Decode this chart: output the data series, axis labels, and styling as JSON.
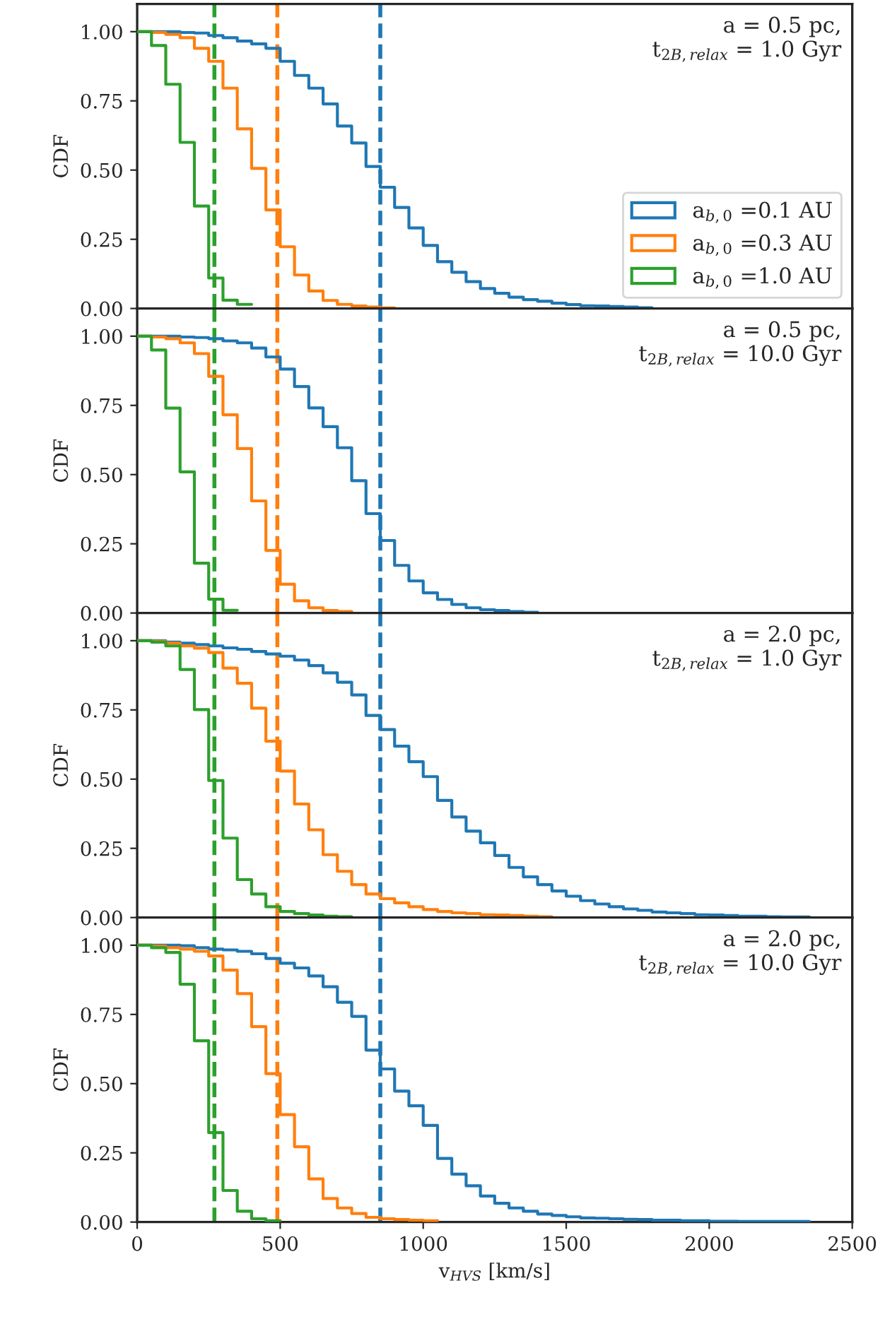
{
  "chart_data": [
    {
      "type": "step",
      "ylabel": "CDF",
      "annotations": [
        "a = 0.5 pc,\nt$_{2B,relax}$ = 1.0 Gyr"
      ],
      "legend": "lower right",
      "tick_labels": "y",
      "xlim": [
        0,
        2500
      ],
      "xticks": [
        0,
        500,
        1000,
        1500,
        2000,
        2500
      ],
      "ylim": [
        0,
        1.1
      ],
      "yticks": [
        {
          "value": 0,
          "label": "0.00"
        },
        {
          "value": 0.25,
          "label": "0.25"
        },
        {
          "value": 0.5,
          "label": "0.50"
        },
        {
          "value": 0.75,
          "label": "0.75"
        },
        {
          "value": 1.0,
          "label": "1.00"
        }
      ],
      "ref_lines": [
        {
          "axis": "x",
          "value": 850,
          "color": "#1f77b4",
          "line_style": "dashed"
        },
        {
          "axis": "x",
          "value": 490,
          "color": "#ff7f0e",
          "line_style": "dashed"
        },
        {
          "axis": "x",
          "value": 270,
          "color": "#2ca02c",
          "line_style": "dashed"
        }
      ],
      "series": [
        {
          "name": "a$_{b,0}$ =0.1 AU",
          "color": "#1f77b4",
          "x": [
            0,
            50,
            100,
            150,
            200,
            250,
            300,
            350,
            400,
            450,
            500,
            550,
            600,
            650,
            700,
            750,
            800,
            850,
            900,
            950,
            1000,
            1050,
            1100,
            1150,
            1200,
            1250,
            1300,
            1350,
            1400,
            1450,
            1500,
            1550,
            1600,
            1650,
            1700,
            1750,
            1800
          ],
          "values": [
            1.0,
            1.0,
            1.0,
            0.997,
            0.995,
            0.986,
            0.978,
            0.966,
            0.956,
            0.94,
            0.893,
            0.842,
            0.796,
            0.739,
            0.659,
            0.598,
            0.513,
            0.438,
            0.365,
            0.291,
            0.228,
            0.169,
            0.131,
            0.097,
            0.072,
            0.055,
            0.041,
            0.032,
            0.026,
            0.019,
            0.014,
            0.01,
            0.009,
            0.007,
            0.005,
            0.003,
            0.003
          ]
        },
        {
          "name": "a$_{b,0}$ =0.3 AU",
          "color": "#ff7f0e",
          "x": [
            0,
            50,
            100,
            150,
            200,
            250,
            300,
            350,
            400,
            450,
            500,
            550,
            600,
            650,
            700,
            750,
            800,
            850,
            900
          ],
          "values": [
            1.0,
            0.997,
            0.99,
            0.978,
            0.94,
            0.893,
            0.796,
            0.649,
            0.506,
            0.356,
            0.223,
            0.121,
            0.063,
            0.029,
            0.015,
            0.009,
            0.005,
            0.002,
            0.002
          ]
        },
        {
          "name": "a$_{b,0}$ =1.0 AU",
          "color": "#2ca02c",
          "x": [
            0,
            50,
            100,
            150,
            200,
            250,
            300,
            350,
            400
          ],
          "values": [
            1.0,
            0.95,
            0.81,
            0.6,
            0.37,
            0.11,
            0.03,
            0.015,
            0.015
          ]
        }
      ]
    },
    {
      "type": "step",
      "ylabel": "CDF",
      "annotations": [
        "a = 0.5 pc,\nt$_{2B,relax}$ = 10.0 Gyr"
      ],
      "tick_labels": "y",
      "xlim": [
        0,
        2500
      ],
      "xticks": [
        0,
        500,
        1000,
        1500,
        2000,
        2500
      ],
      "ylim": [
        0,
        1.1
      ],
      "yticks": [
        {
          "value": 0,
          "label": "0.00"
        },
        {
          "value": 0.25,
          "label": "0.25"
        },
        {
          "value": 0.5,
          "label": "0.50"
        },
        {
          "value": 0.75,
          "label": "0.75"
        },
        {
          "value": 1.0,
          "label": "1.00"
        }
      ],
      "ref_lines": [
        {
          "axis": "x",
          "value": 850,
          "color": "#1f77b4",
          "line_style": "dashed"
        },
        {
          "axis": "x",
          "value": 490,
          "color": "#ff7f0e",
          "line_style": "dashed"
        },
        {
          "axis": "x",
          "value": 270,
          "color": "#2ca02c",
          "line_style": "dashed"
        }
      ],
      "series": [
        {
          "color": "#1f77b4",
          "x": [
            0,
            50,
            100,
            150,
            200,
            250,
            300,
            350,
            400,
            450,
            500,
            550,
            600,
            650,
            700,
            750,
            800,
            850,
            900,
            950,
            1000,
            1050,
            1100,
            1150,
            1200,
            1250,
            1300,
            1350,
            1400
          ],
          "values": [
            1.0,
            1.0,
            1.0,
            0.997,
            0.995,
            0.991,
            0.983,
            0.976,
            0.957,
            0.925,
            0.881,
            0.818,
            0.741,
            0.673,
            0.597,
            0.478,
            0.359,
            0.262,
            0.172,
            0.116,
            0.073,
            0.049,
            0.031,
            0.019,
            0.012,
            0.009,
            0.005,
            0.003,
            0.003
          ]
        },
        {
          "color": "#ff7f0e",
          "x": [
            0,
            50,
            100,
            150,
            200,
            250,
            300,
            350,
            400,
            450,
            500,
            550,
            600,
            650,
            700,
            750
          ],
          "values": [
            1.0,
            0.997,
            0.991,
            0.976,
            0.937,
            0.855,
            0.716,
            0.594,
            0.405,
            0.226,
            0.104,
            0.044,
            0.019,
            0.009,
            0.005,
            0.005
          ]
        },
        {
          "color": "#2ca02c",
          "x": [
            0,
            50,
            100,
            150,
            200,
            250,
            300,
            350
          ],
          "values": [
            1.0,
            0.95,
            0.74,
            0.51,
            0.18,
            0.05,
            0.01,
            0.01
          ]
        }
      ]
    },
    {
      "type": "step",
      "ylabel": "CDF",
      "annotations": [
        "a = 2.0 pc,\nt$_{2B,relax}$ = 1.0 Gyr"
      ],
      "tick_labels": "y",
      "xlim": [
        0,
        2500
      ],
      "xticks": [
        0,
        500,
        1000,
        1500,
        2000,
        2500
      ],
      "ylim": [
        0,
        1.1
      ],
      "yticks": [
        {
          "value": 0,
          "label": "0.00"
        },
        {
          "value": 0.25,
          "label": "0.25"
        },
        {
          "value": 0.5,
          "label": "0.50"
        },
        {
          "value": 0.75,
          "label": "0.75"
        },
        {
          "value": 1.0,
          "label": "1.00"
        }
      ],
      "ref_lines": [
        {
          "axis": "x",
          "value": 850,
          "color": "#1f77b4",
          "line_style": "dashed"
        },
        {
          "axis": "x",
          "value": 490,
          "color": "#ff7f0e",
          "line_style": "dashed"
        },
        {
          "axis": "x",
          "value": 270,
          "color": "#2ca02c",
          "line_style": "dashed"
        }
      ],
      "series": [
        {
          "color": "#1f77b4",
          "x": [
            0,
            50,
            100,
            150,
            200,
            250,
            300,
            350,
            400,
            450,
            500,
            550,
            600,
            650,
            700,
            750,
            800,
            850,
            900,
            950,
            1000,
            1050,
            1100,
            1150,
            1200,
            1250,
            1300,
            1350,
            1400,
            1450,
            1500,
            1550,
            1600,
            1650,
            1700,
            1750,
            1800,
            1850,
            1900,
            1950,
            2000,
            2050,
            2100,
            2150,
            2200,
            2250,
            2300,
            2350
          ],
          "values": [
            1.0,
            1.0,
            0.995,
            0.991,
            0.986,
            0.981,
            0.974,
            0.969,
            0.961,
            0.952,
            0.944,
            0.93,
            0.91,
            0.884,
            0.85,
            0.804,
            0.73,
            0.679,
            0.619,
            0.563,
            0.509,
            0.423,
            0.363,
            0.312,
            0.27,
            0.224,
            0.181,
            0.147,
            0.119,
            0.096,
            0.077,
            0.061,
            0.049,
            0.039,
            0.031,
            0.026,
            0.02,
            0.017,
            0.014,
            0.01,
            0.009,
            0.007,
            0.005,
            0.005,
            0.003,
            0.002,
            0.002,
            0.002
          ]
        },
        {
          "color": "#ff7f0e",
          "x": [
            0,
            50,
            100,
            150,
            200,
            250,
            300,
            350,
            400,
            450,
            500,
            550,
            600,
            650,
            700,
            750,
            800,
            850,
            900,
            950,
            1000,
            1050,
            1100,
            1150,
            1200,
            1250,
            1300,
            1350,
            1400,
            1450
          ],
          "values": [
            1.0,
            0.998,
            0.991,
            0.981,
            0.973,
            0.957,
            0.901,
            0.846,
            0.756,
            0.637,
            0.529,
            0.41,
            0.317,
            0.227,
            0.167,
            0.119,
            0.085,
            0.068,
            0.053,
            0.039,
            0.029,
            0.022,
            0.017,
            0.014,
            0.01,
            0.009,
            0.007,
            0.005,
            0.003,
            0.003
          ]
        },
        {
          "color": "#2ca02c",
          "x": [
            0,
            50,
            100,
            150,
            200,
            250,
            300,
            350,
            400,
            450,
            500,
            550,
            600,
            650,
            700,
            750
          ],
          "values": [
            1.0,
            0.995,
            0.981,
            0.896,
            0.751,
            0.495,
            0.287,
            0.137,
            0.085,
            0.039,
            0.022,
            0.014,
            0.009,
            0.005,
            0.003,
            0.003
          ]
        }
      ]
    },
    {
      "type": "step",
      "ylabel": "CDF",
      "xlabel": "v$_{HVS}$ [km/s]",
      "annotations": [
        "a = 2.0 pc,\nt$_{2B,relax}$ = 10.0 Gyr"
      ],
      "xlim": [
        0,
        2500
      ],
      "xticks": [
        0,
        500,
        1000,
        1500,
        2000,
        2500
      ],
      "ylim": [
        0,
        1.1
      ],
      "yticks": [
        {
          "value": 0,
          "label": "0.00"
        },
        {
          "value": 0.25,
          "label": "0.25"
        },
        {
          "value": 0.5,
          "label": "0.50"
        },
        {
          "value": 0.75,
          "label": "0.75"
        },
        {
          "value": 1.0,
          "label": "1.00"
        }
      ],
      "ref_lines": [
        {
          "axis": "x",
          "value": 850,
          "color": "#1f77b4",
          "line_style": "dashed"
        },
        {
          "axis": "x",
          "value": 490,
          "color": "#ff7f0e",
          "line_style": "dashed"
        },
        {
          "axis": "x",
          "value": 270,
          "color": "#2ca02c",
          "line_style": "dashed"
        }
      ],
      "series": [
        {
          "color": "#1f77b4",
          "x": [
            0,
            50,
            100,
            150,
            200,
            250,
            300,
            350,
            400,
            450,
            500,
            550,
            600,
            650,
            700,
            750,
            800,
            850,
            900,
            950,
            1000,
            1050,
            1100,
            1150,
            1200,
            1250,
            1300,
            1350,
            1400,
            1450,
            1500,
            1550,
            1600,
            1650,
            1700,
            1750,
            1800,
            1850,
            1900,
            1950,
            2000,
            2050,
            2100,
            2150,
            2200,
            2250,
            2300,
            2350
          ],
          "values": [
            1.0,
            1.0,
            1.0,
            0.998,
            0.991,
            0.986,
            0.983,
            0.978,
            0.969,
            0.952,
            0.935,
            0.918,
            0.889,
            0.85,
            0.794,
            0.743,
            0.621,
            0.553,
            0.473,
            0.42,
            0.349,
            0.23,
            0.173,
            0.131,
            0.094,
            0.068,
            0.051,
            0.039,
            0.029,
            0.024,
            0.019,
            0.015,
            0.014,
            0.012,
            0.01,
            0.009,
            0.007,
            0.007,
            0.005,
            0.005,
            0.003,
            0.003,
            0.002,
            0.002,
            0.002,
            0.002,
            0.002,
            0.002
          ]
        },
        {
          "color": "#ff7f0e",
          "x": [
            0,
            50,
            100,
            150,
            200,
            250,
            300,
            350,
            400,
            450,
            500,
            550,
            600,
            650,
            700,
            750,
            800,
            850,
            900,
            950,
            1000,
            1050
          ],
          "values": [
            1.0,
            0.997,
            0.991,
            0.986,
            0.978,
            0.961,
            0.91,
            0.825,
            0.706,
            0.536,
            0.388,
            0.272,
            0.156,
            0.085,
            0.051,
            0.031,
            0.017,
            0.012,
            0.009,
            0.007,
            0.005,
            0.005
          ]
        },
        {
          "color": "#2ca02c",
          "x": [
            0,
            50,
            100,
            150,
            200,
            250,
            300,
            350,
            400,
            450,
            500
          ],
          "values": [
            1.0,
            0.991,
            0.974,
            0.859,
            0.655,
            0.323,
            0.114,
            0.039,
            0.012,
            0.005,
            0.005
          ]
        }
      ]
    }
  ]
}
